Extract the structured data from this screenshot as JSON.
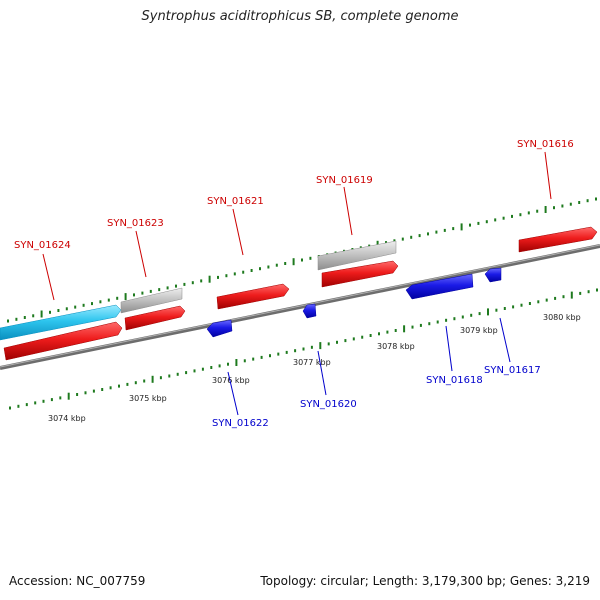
{
  "title": "Syntrophus aciditrophicus SB, complete genome",
  "accession": "Accession: NC_007759",
  "summary": "Topology: circular; Length: 3,179,300 bp; Genes: 3,219",
  "colors": {
    "backbone": "#7a7a7a",
    "tick": "#1e7a1e",
    "forward_gene": "#ee1c1c",
    "reverse_gene": "#1a1ae6",
    "rna_feature": "#2ec5ee",
    "pseudo_feature": "#bdbdbd",
    "forward_label": "#cc0000",
    "reverse_label": "#0000cc"
  },
  "scale_labels": [
    "3074 kbp",
    "3075 kbp",
    "3076 kbp",
    "3077 kbp",
    "3078 kbp",
    "3079 kbp",
    "3080 kbp"
  ],
  "forward_labels": [
    "SYN_01624",
    "SYN_01623",
    "SYN_01621",
    "SYN_01619",
    "SYN_01616"
  ],
  "reverse_labels": [
    "SYN_01622",
    "SYN_01620",
    "SYN_01618",
    "SYN_01617"
  ]
}
